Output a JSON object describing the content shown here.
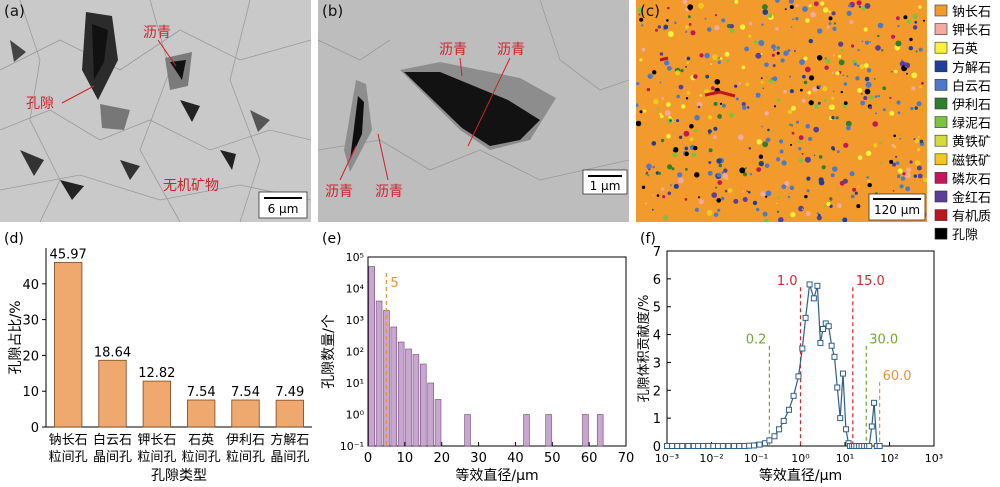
{
  "panels": {
    "a": {
      "tag": "(a)",
      "labels": [
        "沥青",
        "孔隙",
        "无机矿物"
      ],
      "scale_bar": "6 μm"
    },
    "b": {
      "tag": "(b)",
      "labels": [
        "沥青",
        "沥青",
        "沥青",
        "沥青"
      ],
      "scale_bar": "1 μm"
    },
    "c": {
      "tag": "(c)",
      "scale_bar": "120 μm"
    }
  },
  "legend": [
    {
      "label": "钠长石",
      "color": "#F39A2C"
    },
    {
      "label": "钾长石",
      "color": "#F4A9A1"
    },
    {
      "label": "石英",
      "color": "#F7F03C"
    },
    {
      "label": "方解石",
      "color": "#1E3F9A"
    },
    {
      "label": "白云石",
      "color": "#4E79C6"
    },
    {
      "label": "伊利石",
      "color": "#2F7F2F"
    },
    {
      "label": "绿泥石",
      "color": "#7CC242"
    },
    {
      "label": "黄铁矿",
      "color": "#D4DC3C"
    },
    {
      "label": "磁铁矿",
      "color": "#F0C81E"
    },
    {
      "label": "磷灰石",
      "color": "#C2185B"
    },
    {
      "label": "金红石",
      "color": "#5B3E96"
    },
    {
      "label": "有机质",
      "color": "#C0141E"
    },
    {
      "label": "孔隙",
      "color": "#000000"
    }
  ],
  "chart_data": [
    {
      "panel": "(d)",
      "type": "bar",
      "categories": [
        [
          "钠长石",
          "粒间孔"
        ],
        [
          "白云石",
          "晶间孔"
        ],
        [
          "钾长石",
          "粒间孔"
        ],
        [
          "石英",
          "粒间孔"
        ],
        [
          "伊利石",
          "粒间孔"
        ],
        [
          "方解石",
          "晶间孔"
        ]
      ],
      "values": [
        45.97,
        18.64,
        12.82,
        7.54,
        7.54,
        7.49
      ],
      "value_labels": [
        "45.97",
        "18.64",
        "12.82",
        "7.54",
        "7.54",
        "7.49"
      ],
      "xlabel": "孔隙类型",
      "ylabel": "孔隙占比/%",
      "ylim": [
        0,
        50
      ],
      "yticks": [
        0,
        10,
        20,
        30,
        40
      ],
      "bar_color": "#EFA96F"
    },
    {
      "panel": "(e)",
      "type": "bar",
      "log_y": true,
      "x": [
        1,
        3,
        5,
        7,
        9,
        11,
        13,
        15,
        17,
        19,
        27,
        43,
        49,
        59,
        63
      ],
      "values": [
        50000,
        4000,
        2000,
        600,
        200,
        120,
        80,
        40,
        10,
        3,
        1,
        1,
        1,
        1,
        1
      ],
      "bar_width": 2,
      "xlabel": "等效直径/μm",
      "ylabel": "孔隙数量/个",
      "xlim": [
        0,
        70
      ],
      "xticks": [
        0,
        10,
        20,
        30,
        40,
        50,
        60,
        70
      ],
      "ylim": [
        0.1,
        100000
      ],
      "yticks": [
        "10⁻¹",
        "10⁰",
        "10¹",
        "10²",
        "10³",
        "10⁴",
        "10⁵"
      ],
      "bar_color": "#C9A6CF",
      "reference_lines": [
        {
          "x": 5,
          "label": "5",
          "color": "#E8923A"
        }
      ]
    },
    {
      "panel": "(f)",
      "type": "line",
      "log_x": true,
      "x": [
        0.001,
        0.0013,
        0.0017,
        0.0022,
        0.003,
        0.004,
        0.005,
        0.0065,
        0.0085,
        0.011,
        0.014,
        0.018,
        0.024,
        0.032,
        0.042,
        0.055,
        0.07,
        0.09,
        0.12,
        0.16,
        0.2,
        0.26,
        0.33,
        0.42,
        0.55,
        0.7,
        0.9,
        1.1,
        1.3,
        1.6,
        2.0,
        2.4,
        2.8,
        3.2,
        3.7,
        4.3,
        5.0,
        5.8,
        6.7,
        7.8,
        9.0,
        10.5,
        12.0,
        13.0,
        14.5,
        16.0,
        18.0,
        20.5,
        23.5,
        27.0,
        31.0,
        35.0,
        40.0,
        45.0,
        52.0,
        60.0
      ],
      "values": [
        0,
        0,
        0,
        0,
        0,
        0,
        0,
        0,
        0,
        0,
        0,
        0,
        0,
        0,
        0,
        0,
        0.01,
        0.02,
        0.05,
        0.1,
        0.2,
        0.35,
        0.6,
        0.9,
        1.3,
        1.8,
        2.5,
        3.5,
        4.6,
        5.8,
        5.3,
        5.75,
        3.7,
        4.2,
        4.4,
        4.3,
        3.6,
        3.2,
        2.1,
        1.0,
        2.6,
        0.6,
        0.1,
        0,
        0,
        0,
        0,
        0,
        0,
        0,
        0,
        0,
        0.7,
        1.55,
        0,
        0
      ],
      "xlabel": "等效直径/μm",
      "ylabel": "孔隙体积贡献度/%",
      "xlim": [
        0.001,
        1000
      ],
      "xticks": [
        "10⁻³",
        "10⁻²",
        "10⁻¹",
        "10⁰",
        "10¹",
        "10²",
        "10³"
      ],
      "ylim": [
        0,
        7
      ],
      "yticks": [
        0,
        1,
        2,
        3,
        4,
        5,
        6,
        7
      ],
      "series_color": "#2E5F8C",
      "reference_lines": [
        {
          "x": 1.0,
          "label": "1.0",
          "color": "#D7262C"
        },
        {
          "x": 15.0,
          "label": "15.0",
          "color": "#D7262C"
        },
        {
          "x": 0.2,
          "label": "0.2",
          "color": "#6DAA2C"
        },
        {
          "x": 30.0,
          "label": "30.0",
          "color": "#6DAA2C"
        },
        {
          "x": 60.0,
          "label": "60.0",
          "color": "#E8923A"
        }
      ]
    }
  ]
}
